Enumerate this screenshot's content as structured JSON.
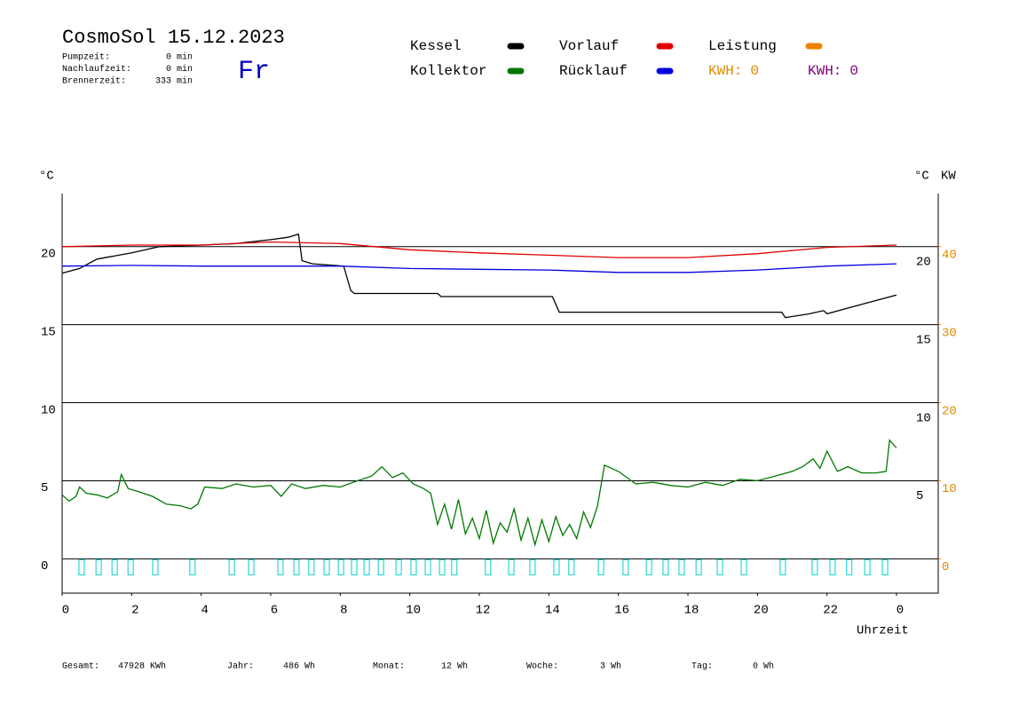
{
  "header": {
    "title": "CosmoSol 15.12.2023",
    "day": "Fr",
    "stats": [
      {
        "label": "Pumpzeit:",
        "value": "0 min"
      },
      {
        "label": "Nachlaufzeit:",
        "value": "0 min"
      },
      {
        "label": "Brennerzeit:",
        "value": "333 min"
      }
    ]
  },
  "chart_data": {
    "type": "line",
    "y_label": "°C",
    "y2_label": "KW",
    "x_label": "Uhrzeit",
    "xlim": [
      0,
      25.2
    ],
    "xticks": [
      0,
      2,
      4,
      6,
      8,
      10,
      12,
      14,
      16,
      18,
      20,
      22,
      {
        "value": 24,
        "label": "0"
      }
    ],
    "ylim": [
      -2.2,
      23.4
    ],
    "yticks": [
      0,
      5,
      10,
      15,
      20
    ],
    "y_right_ticks": [
      5,
      10,
      15,
      20
    ],
    "y2lim": [
      -4.4,
      46.8
    ],
    "y2ticks": [
      0,
      10,
      20,
      30,
      40
    ],
    "y2_color": "#e08a00",
    "grid": true,
    "series": [
      {
        "name": "Kessel",
        "color": "#000000",
        "x": [
          0,
          0.5,
          1,
          2,
          2.8,
          4,
          5,
          6,
          6.5,
          6.8,
          6.9,
          7.2,
          8.1,
          8.3,
          8.4,
          10.8,
          10.9,
          14.1,
          14.3,
          20.7,
          20.8,
          21.5,
          21.9,
          22,
          23,
          24
        ],
        "values": [
          18.3,
          18.6,
          19.2,
          19.6,
          20.0,
          20.1,
          20.2,
          20.45,
          20.6,
          20.8,
          19.1,
          18.9,
          18.75,
          17.2,
          17.0,
          17.0,
          16.8,
          16.8,
          15.8,
          15.8,
          15.45,
          15.7,
          15.9,
          15.7,
          16.3,
          16.9
        ]
      },
      {
        "name": "Vorlauf",
        "color": "#e00000",
        "x": [
          0,
          2,
          4,
          6,
          8,
          10,
          12,
          14,
          16,
          18,
          20,
          22,
          24
        ],
        "values": [
          20.0,
          20.1,
          20.1,
          20.3,
          20.2,
          19.8,
          19.6,
          19.45,
          19.3,
          19.3,
          19.55,
          19.95,
          20.1
        ]
      },
      {
        "name": "Leistung",
        "color": "#f08000",
        "x": [],
        "values": []
      },
      {
        "name": "Kollektor",
        "color": "#007800",
        "x": [
          0,
          0.2,
          0.4,
          0.5,
          0.7,
          1,
          1.3,
          1.6,
          1.7,
          1.9,
          2.2,
          2.6,
          3,
          3.4,
          3.7,
          3.9,
          4.1,
          4.6,
          5,
          5.5,
          6,
          6.3,
          6.6,
          7,
          7.5,
          8,
          8.5,
          8.9,
          9.2,
          9.5,
          9.8,
          10.1,
          10.4,
          10.6,
          10.8,
          11,
          11.2,
          11.4,
          11.6,
          11.8,
          12,
          12.2,
          12.4,
          12.6,
          12.8,
          13,
          13.2,
          13.4,
          13.6,
          13.8,
          14,
          14.2,
          14.4,
          14.6,
          14.8,
          15,
          15.2,
          15.4,
          15.6,
          16,
          16.5,
          17,
          17.5,
          18,
          18.5,
          19,
          19.5,
          20,
          20.5,
          21,
          21.3,
          21.6,
          21.8,
          22,
          22.3,
          22.6,
          23,
          23.4,
          23.7,
          23.8,
          24
        ],
        "values": [
          4.1,
          3.7,
          4.0,
          4.6,
          4.2,
          4.1,
          3.9,
          4.3,
          5.4,
          4.5,
          4.3,
          4.0,
          3.5,
          3.4,
          3.2,
          3.5,
          4.6,
          4.5,
          4.8,
          4.6,
          4.7,
          4.0,
          4.8,
          4.5,
          4.7,
          4.6,
          5.0,
          5.3,
          5.9,
          5.2,
          5.5,
          4.8,
          4.5,
          4.2,
          2.2,
          3.5,
          1.9,
          3.8,
          1.6,
          2.6,
          1.3,
          3.1,
          1.0,
          2.3,
          1.7,
          3.2,
          1.2,
          2.6,
          0.9,
          2.5,
          1.1,
          2.7,
          1.5,
          2.2,
          1.3,
          3.0,
          2.0,
          3.4,
          6.0,
          5.6,
          4.8,
          4.9,
          4.7,
          4.6,
          4.9,
          4.7,
          5.1,
          5.0,
          5.3,
          5.6,
          5.9,
          6.4,
          5.8,
          6.9,
          5.6,
          5.9,
          5.5,
          5.5,
          5.6,
          7.6,
          7.1
        ]
      },
      {
        "name": "Rücklauf",
        "color": "#0000e0",
        "x": [
          0,
          2,
          4,
          6,
          8,
          10,
          12,
          14,
          16,
          18,
          20,
          22,
          24
        ],
        "values": [
          18.75,
          18.8,
          18.75,
          18.75,
          18.75,
          18.6,
          18.55,
          18.5,
          18.35,
          18.35,
          18.5,
          18.75,
          18.9
        ]
      }
    ],
    "kwh": [
      {
        "label": "KWH:",
        "value": 0,
        "color": "#e08a00"
      },
      {
        "label": "KWH:",
        "value": 0,
        "color": "#800080"
      }
    ],
    "pulses": {
      "color": "#00d0d0",
      "x": [
        0.56,
        1.05,
        1.51,
        1.97,
        2.68,
        3.75,
        4.88,
        5.44,
        6.28,
        6.74,
        7.17,
        7.61,
        8.02,
        8.4,
        8.76,
        9.17,
        9.68,
        10.11,
        10.52,
        10.93,
        11.28,
        12.25,
        12.92,
        13.53,
        14.22,
        14.65,
        15.5,
        16.21,
        16.88,
        17.36,
        17.82,
        18.31,
        18.92,
        19.61,
        20.73,
        21.65,
        22.16,
        22.64,
        23.16,
        23.67
      ]
    }
  },
  "footer": [
    {
      "label": "Gesamt:",
      "value": "47928 KWh"
    },
    {
      "label": "Jahr:",
      "value": "486 Wh"
    },
    {
      "label": "Monat:",
      "value": "12 Wh"
    },
    {
      "label": "Woche:",
      "value": "3 Wh"
    },
    {
      "label": "Tag:",
      "value": "0 Wh"
    }
  ]
}
